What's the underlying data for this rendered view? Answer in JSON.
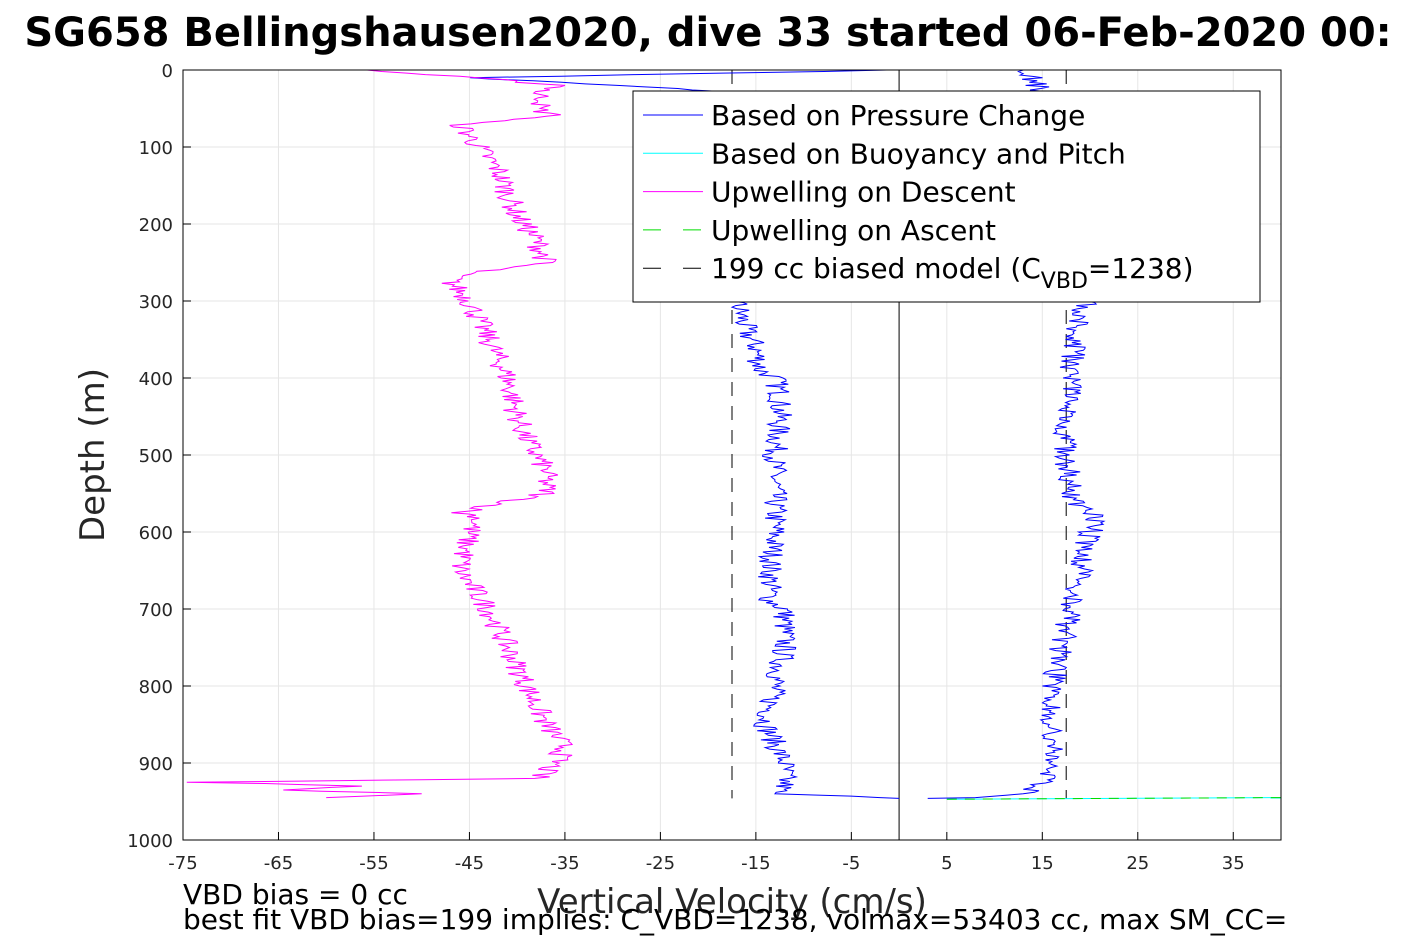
{
  "chart_data": {
    "type": "line",
    "title": "SG658 Bellingshausen2020, dive 33 started 06-Feb-2020 00:",
    "xlabel": "Vertical Velocity (cm/s)",
    "ylabel": "Depth (m)",
    "xlim": [
      -75,
      40
    ],
    "ylim": [
      0,
      1000
    ],
    "y_reversed": true,
    "grid": true,
    "xticks": [
      -75,
      -65,
      -55,
      -45,
      -35,
      -25,
      -15,
      -5,
      5,
      15,
      25,
      35
    ],
    "xtick_labels": [
      "-75",
      "-65",
      "-55",
      "-45",
      "-35",
      "-25",
      "-15",
      "-5",
      "5",
      "15",
      "25",
      "35"
    ],
    "yticks": [
      0,
      100,
      200,
      300,
      400,
      500,
      600,
      700,
      800,
      900,
      1000
    ],
    "ytick_labels": [
      "0",
      "100",
      "200",
      "300",
      "400",
      "500",
      "600",
      "700",
      "800",
      "900",
      "1000"
    ],
    "legend_position": "top-right",
    "series": [
      {
        "name": "Based on Pressure Change",
        "color": "#0000ff",
        "style": "solid",
        "segments": [
          {
            "depth": [
              0,
              10,
              30,
              60,
              100,
              150,
              200,
              250,
              300,
              320,
              340,
              360,
              390,
              400,
              420,
              450,
              500,
              550,
              600,
              650,
              690,
              700,
              750,
              800,
              850,
              900,
              930,
              940,
              943,
              945,
              946
            ],
            "velocity": [
              0,
              -45,
              -15,
              -14,
              -15,
              -15,
              -16,
              -16,
              -17,
              -16.5,
              -16,
              -15,
              -14.5,
              -13,
              -12.5,
              -12.5,
              -13,
              -13,
              -13,
              -13.5,
              -13.5,
              -12,
              -12,
              -13,
              -14,
              -12,
              -12,
              -13,
              -5,
              -2,
              0
            ]
          },
          {
            "depth": [
              946,
              945,
              940,
              930,
              900,
              850,
              800,
              750,
              700,
              650,
              600,
              580,
              560,
              500,
              450,
              400,
              350,
              300,
              250,
              200,
              150,
              100,
              60,
              30,
              10,
              5,
              2,
              0
            ],
            "velocity": [
              3,
              8,
              13,
              15,
              16,
              16,
              16,
              17,
              18,
              19,
              20,
              21,
              18,
              17.5,
              17.5,
              18,
              18.5,
              19.5,
              19,
              18.5,
              18,
              17,
              16,
              15,
              14,
              13,
              12.5,
              13
            ]
          }
        ]
      },
      {
        "name": "Based on Buoyancy and Pitch",
        "color": "#00ffff",
        "style": "solid",
        "segments": [
          {
            "depth": [
              947,
              945
            ],
            "velocity": [
              5,
              40
            ]
          }
        ]
      },
      {
        "name": "Upwelling on Descent",
        "color": "#ff00ff",
        "style": "solid",
        "segments": [
          {
            "depth": [
              0,
              10,
              20,
              30,
              40,
              50,
              60,
              70,
              100,
              130,
              160,
              190,
              220,
              250,
              265,
              275,
              300,
              350,
              400,
              450,
              480,
              500,
              520,
              550,
              575,
              580,
              600,
              650,
              700,
              750,
              800,
              850,
              880,
              900,
              920,
              925,
              930,
              935,
              940,
              945
            ],
            "velocity": [
              -56,
              -45,
              -35,
              -38,
              -37,
              -38,
              -36,
              -46,
              -44,
              -42,
              -41,
              -40,
              -38,
              -37,
              -46,
              -47,
              -45,
              -43,
              -41,
              -40,
              -39,
              -38,
              -37,
              -37,
              -46,
              -44,
              -45,
              -46,
              -43,
              -41,
              -39,
              -37,
              -35,
              -36,
              -38,
              -74,
              -55,
              -65,
              -50,
              -60
            ]
          }
        ]
      },
      {
        "name": "Upwelling on Ascent",
        "color": "#00dd00",
        "style": "dashed",
        "segments": [
          {
            "depth": [
              947,
              945
            ],
            "velocity": [
              5,
              40
            ]
          }
        ]
      },
      {
        "name": "199 cc biased model (C_VBD=1238)",
        "legend_label_parts": [
          "199 cc biased model (C",
          "VBD",
          "=1238)"
        ],
        "color": "#000000",
        "style": "dashed",
        "segments": [
          {
            "depth": [
              0,
              946
            ],
            "velocity": [
              -17.5,
              -17.5
            ]
          },
          {
            "depth": [
              0,
              946
            ],
            "velocity": [
              17.5,
              17.5
            ]
          }
        ]
      }
    ],
    "reference_line": {
      "velocity": 0,
      "color": "#000000",
      "style": "solid"
    },
    "annotations": [
      "VBD bias = 0 cc",
      "best fit VBD bias=199 implies: C_VBD=1238, volmax=53403 cc, max SM_CC="
    ]
  }
}
